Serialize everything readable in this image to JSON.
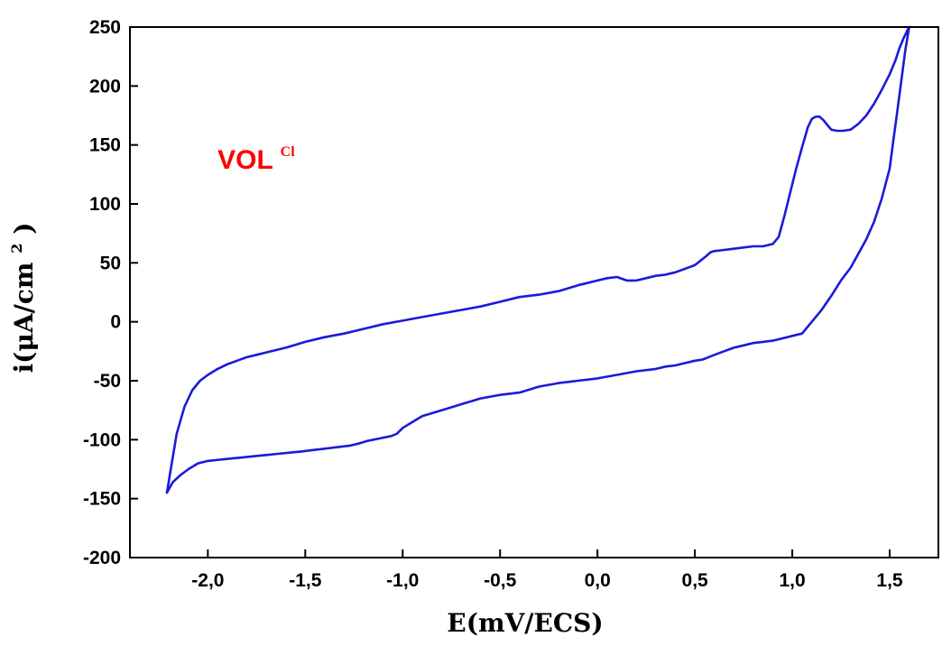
{
  "chart_data": {
    "type": "line",
    "xlabel": "E(mV/ECS)",
    "ylabel_main": "i(μA/cm",
    "ylabel_sup": "2",
    "ylabel_close": ")",
    "xlim": [
      -2.4,
      1.75
    ],
    "ylim": [
      -200,
      250
    ],
    "x_ticks": [
      -2.0,
      -1.5,
      -1.0,
      -0.5,
      0.0,
      0.5,
      1.0,
      1.5
    ],
    "x_tick_labels": [
      "-2,0",
      "-1,5",
      "-1,0",
      "-0,5",
      "0,0",
      "0,5",
      "1,0",
      "1,5"
    ],
    "y_ticks": [
      -200,
      -150,
      -100,
      -50,
      0,
      50,
      100,
      150,
      200,
      250
    ],
    "y_tick_labels": [
      "-200",
      "-150",
      "-100",
      "-50",
      "0",
      "50",
      "100",
      "150",
      "200",
      "250"
    ],
    "grid": false,
    "annotation": {
      "text": "VOL",
      "superscript": "Cl",
      "color": "#ff0000",
      "x": -1.95,
      "y": 130
    },
    "series": [
      {
        "color": "#1a1adb",
        "x": [
          -2.21,
          -2.19,
          -2.16,
          -2.12,
          -2.08,
          -2.04,
          -2.0,
          -1.95,
          -1.9,
          -1.85,
          -1.8,
          -1.75,
          -1.7,
          -1.6,
          -1.5,
          -1.4,
          -1.3,
          -1.2,
          -1.1,
          -1.0,
          -0.9,
          -0.8,
          -0.7,
          -0.6,
          -0.5,
          -0.4,
          -0.3,
          -0.2,
          -0.1,
          0.0,
          0.05,
          0.1,
          0.15,
          0.2,
          0.25,
          0.3,
          0.35,
          0.4,
          0.45,
          0.5,
          0.53,
          0.56,
          0.58,
          0.6,
          0.65,
          0.7,
          0.75,
          0.8,
          0.85,
          0.9,
          0.93,
          0.96,
          0.99,
          1.02,
          1.05,
          1.08,
          1.1,
          1.12,
          1.14,
          1.16,
          1.18,
          1.2,
          1.23,
          1.26,
          1.3,
          1.34,
          1.38,
          1.42,
          1.46,
          1.5,
          1.53,
          1.55,
          1.57,
          1.59,
          1.6,
          1.58,
          1.56,
          1.54,
          1.52,
          1.5,
          1.46,
          1.42,
          1.38,
          1.34,
          1.3,
          1.25,
          1.2,
          1.15,
          1.1,
          1.05,
          1.0,
          0.95,
          0.9,
          0.85,
          0.8,
          0.75,
          0.7,
          0.65,
          0.6,
          0.57,
          0.54,
          0.5,
          0.45,
          0.4,
          0.35,
          0.3,
          0.2,
          0.1,
          0.0,
          -0.1,
          -0.2,
          -0.3,
          -0.4,
          -0.5,
          -0.6,
          -0.7,
          -0.8,
          -0.9,
          -0.95,
          -1.0,
          -1.03,
          -1.06,
          -1.09,
          -1.12,
          -1.15,
          -1.18,
          -1.22,
          -1.27,
          -1.32,
          -1.37,
          -1.42,
          -1.47,
          -1.52,
          -1.58,
          -1.64,
          -1.7,
          -1.76,
          -1.82,
          -1.88,
          -1.94,
          -2.0,
          -2.05,
          -2.1,
          -2.14,
          -2.18,
          -2.21
        ],
        "y": [
          -145,
          -125,
          -95,
          -72,
          -58,
          -50,
          -45,
          -40,
          -36,
          -33,
          -30,
          -28,
          -26,
          -22,
          -17,
          -13,
          -10,
          -6,
          -2,
          1,
          4,
          7,
          10,
          13,
          17,
          21,
          23,
          26,
          31,
          35,
          37,
          38,
          35,
          35,
          37,
          39,
          40,
          42,
          45,
          48,
          52,
          56,
          59,
          60,
          61,
          62,
          63,
          64,
          64,
          66,
          72,
          90,
          110,
          130,
          148,
          165,
          172,
          174,
          174,
          171,
          167,
          163,
          162,
          162,
          163,
          168,
          175,
          185,
          197,
          210,
          222,
          232,
          240,
          247,
          250,
          230,
          205,
          180,
          155,
          130,
          105,
          85,
          70,
          58,
          46,
          35,
          22,
          10,
          0,
          -10,
          -12,
          -14,
          -16,
          -17,
          -18,
          -20,
          -22,
          -25,
          -28,
          -30,
          -32,
          -33,
          -35,
          -37,
          -38,
          -40,
          -42,
          -45,
          -48,
          -50,
          -52,
          -55,
          -60,
          -62,
          -65,
          -70,
          -75,
          -80,
          -85,
          -90,
          -95,
          -97,
          -98,
          -99,
          -100,
          -101,
          -103,
          -105,
          -106,
          -107,
          -108,
          -109,
          -110,
          -111,
          -112,
          -113,
          -114,
          -115,
          -116,
          -117,
          -118,
          -120,
          -125,
          -130,
          -136,
          -145
        ]
      }
    ]
  }
}
